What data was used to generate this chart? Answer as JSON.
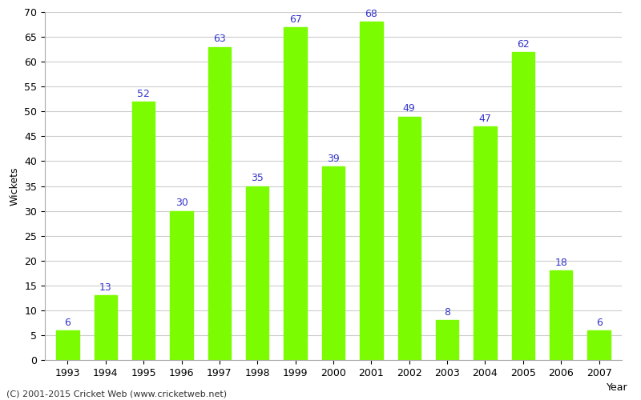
{
  "years": [
    "1993",
    "1994",
    "1995",
    "1996",
    "1997",
    "1998",
    "1999",
    "2000",
    "2001",
    "2002",
    "2003",
    "2004",
    "2005",
    "2006",
    "2007"
  ],
  "wickets": [
    6,
    13,
    52,
    30,
    63,
    35,
    67,
    39,
    68,
    49,
    8,
    47,
    62,
    18,
    6
  ],
  "bar_color": "#7cfc00",
  "label_color": "#3333cc",
  "xlabel": "Year",
  "ylabel": "Wickets",
  "ylim": [
    0,
    70
  ],
  "yticks": [
    0,
    5,
    10,
    15,
    20,
    25,
    30,
    35,
    40,
    45,
    50,
    55,
    60,
    65,
    70
  ],
  "caption": "(C) 2001-2015 Cricket Web (www.cricketweb.net)",
  "label_fontsize": 9,
  "axis_fontsize": 9,
  "caption_fontsize": 8,
  "background_color": "#ffffff",
  "grid_color": "#cccccc"
}
